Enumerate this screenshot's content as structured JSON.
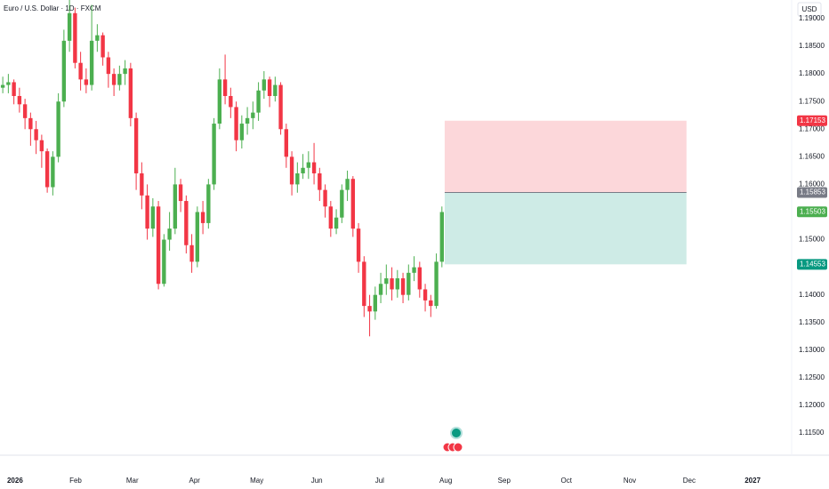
{
  "chart_data": {
    "type": "candlestick",
    "title": "Euro / U.S. Dollar · 1D · FXCM",
    "currency": "USD",
    "up_color": "#4caf50",
    "down_color": "#f23645",
    "candles": [
      [
        1.1775,
        1.1795,
        1.1765,
        1.178
      ],
      [
        1.178,
        1.18,
        1.1765,
        1.1785
      ],
      [
        1.1785,
        1.179,
        1.1745,
        1.176
      ],
      [
        1.176,
        1.1775,
        1.173,
        1.1745
      ],
      [
        1.1745,
        1.1755,
        1.17,
        1.172
      ],
      [
        1.172,
        1.173,
        1.167,
        1.17
      ],
      [
        1.17,
        1.1715,
        1.1655,
        1.168
      ],
      [
        1.168,
        1.169,
        1.163,
        1.166
      ],
      [
        1.166,
        1.1665,
        1.1585,
        1.1595
      ],
      [
        1.1595,
        1.166,
        1.158,
        1.165
      ],
      [
        1.165,
        1.1765,
        1.164,
        1.175
      ],
      [
        1.175,
        1.188,
        1.174,
        1.186
      ],
      [
        1.186,
        1.1935,
        1.184,
        1.191
      ],
      [
        1.191,
        1.192,
        1.181,
        1.182
      ],
      [
        1.182,
        1.184,
        1.177,
        1.179
      ],
      [
        1.179,
        1.181,
        1.1765,
        1.178
      ],
      [
        1.178,
        1.1925,
        1.177,
        1.186
      ],
      [
        1.186,
        1.189,
        1.184,
        1.187
      ],
      [
        1.187,
        1.1875,
        1.1815,
        1.183
      ],
      [
        1.183,
        1.184,
        1.1775,
        1.18
      ],
      [
        1.18,
        1.181,
        1.176,
        1.178
      ],
      [
        1.178,
        1.1815,
        1.177,
        1.18
      ],
      [
        1.18,
        1.1825,
        1.178,
        1.181
      ],
      [
        1.181,
        1.182,
        1.1705,
        1.172
      ],
      [
        1.172,
        1.173,
        1.159,
        1.162
      ],
      [
        1.162,
        1.164,
        1.1555,
        1.158
      ],
      [
        1.158,
        1.16,
        1.15,
        1.152
      ],
      [
        1.152,
        1.1575,
        1.1505,
        1.156
      ],
      [
        1.156,
        1.157,
        1.141,
        1.142
      ],
      [
        1.142,
        1.151,
        1.1415,
        1.15
      ],
      [
        1.15,
        1.155,
        1.148,
        1.152
      ],
      [
        1.152,
        1.163,
        1.151,
        1.16
      ],
      [
        1.16,
        1.161,
        1.155,
        1.157
      ],
      [
        1.157,
        1.158,
        1.1475,
        1.149
      ],
      [
        1.149,
        1.151,
        1.144,
        1.146
      ],
      [
        1.146,
        1.156,
        1.145,
        1.155
      ],
      [
        1.155,
        1.157,
        1.151,
        1.153
      ],
      [
        1.153,
        1.161,
        1.152,
        1.16
      ],
      [
        1.16,
        1.172,
        1.159,
        1.171
      ],
      [
        1.171,
        1.181,
        1.17,
        1.179
      ],
      [
        1.179,
        1.1835,
        1.1745,
        1.176
      ],
      [
        1.176,
        1.1775,
        1.172,
        1.174
      ],
      [
        1.174,
        1.175,
        1.166,
        1.168
      ],
      [
        1.168,
        1.1725,
        1.1665,
        1.171
      ],
      [
        1.171,
        1.174,
        1.169,
        1.172
      ],
      [
        1.172,
        1.175,
        1.17,
        1.173
      ],
      [
        1.173,
        1.1785,
        1.1715,
        1.177
      ],
      [
        1.177,
        1.1805,
        1.1755,
        1.179
      ],
      [
        1.179,
        1.1795,
        1.174,
        1.176
      ],
      [
        1.176,
        1.1795,
        1.175,
        1.178
      ],
      [
        1.178,
        1.1785,
        1.169,
        1.17
      ],
      [
        1.17,
        1.171,
        1.163,
        1.165
      ],
      [
        1.165,
        1.166,
        1.158,
        1.16
      ],
      [
        1.16,
        1.164,
        1.1585,
        1.162
      ],
      [
        1.162,
        1.1655,
        1.161,
        1.163
      ],
      [
        1.163,
        1.166,
        1.161,
        1.164
      ],
      [
        1.164,
        1.1675,
        1.16,
        1.162
      ],
      [
        1.162,
        1.163,
        1.157,
        1.159
      ],
      [
        1.159,
        1.16,
        1.154,
        1.156
      ],
      [
        1.156,
        1.157,
        1.1505,
        1.152
      ],
      [
        1.152,
        1.1555,
        1.151,
        1.154
      ],
      [
        1.154,
        1.16,
        1.153,
        1.159
      ],
      [
        1.159,
        1.1625,
        1.157,
        1.161
      ],
      [
        1.161,
        1.1615,
        1.1505,
        1.152
      ],
      [
        1.152,
        1.153,
        1.144,
        1.146
      ],
      [
        1.146,
        1.147,
        1.136,
        1.138
      ],
      [
        1.138,
        1.14,
        1.1325,
        1.137
      ],
      [
        1.137,
        1.1415,
        1.1355,
        1.14
      ],
      [
        1.14,
        1.144,
        1.1385,
        1.142
      ],
      [
        1.142,
        1.1455,
        1.14,
        1.143
      ],
      [
        1.143,
        1.145,
        1.139,
        1.141
      ],
      [
        1.141,
        1.1445,
        1.1395,
        1.143
      ],
      [
        1.143,
        1.144,
        1.1385,
        1.14
      ],
      [
        1.14,
        1.1455,
        1.139,
        1.144
      ],
      [
        1.144,
        1.147,
        1.1425,
        1.145
      ],
      [
        1.145,
        1.146,
        1.1395,
        1.141
      ],
      [
        1.141,
        1.142,
        1.137,
        1.139
      ],
      [
        1.139,
        1.14,
        1.136,
        1.138
      ],
      [
        1.138,
        1.1475,
        1.1375,
        1.146
      ],
      [
        1.146,
        1.156,
        1.145,
        1.155
      ]
    ],
    "xlim": [
      -0.5,
      141.6
    ],
    "xticks": [
      {
        "value": 2.2,
        "label": "2026"
      },
      {
        "value": 13.1,
        "label": "Feb"
      },
      {
        "value": 23.3,
        "label": "Mar"
      },
      {
        "value": 34.5,
        "label": "Apr"
      },
      {
        "value": 45.7,
        "label": "May"
      },
      {
        "value": 56.5,
        "label": "Jun"
      },
      {
        "value": 67.8,
        "label": "Jul"
      },
      {
        "value": 79.7,
        "label": "Aug"
      },
      {
        "value": 90.2,
        "label": "Sep"
      },
      {
        "value": 101.4,
        "label": "Oct"
      },
      {
        "value": 112.8,
        "label": "Nov"
      },
      {
        "value": 123.5,
        "label": "Dec"
      },
      {
        "value": 134.9,
        "label": "2027"
      }
    ],
    "ylim": [
      1.11098,
      1.19338
    ],
    "yticks": [
      {
        "value": 1.19,
        "label": "1.19000"
      },
      {
        "value": 1.185,
        "label": "1.18500"
      },
      {
        "value": 1.18,
        "label": "1.18000"
      },
      {
        "value": 1.175,
        "label": "1.17500"
      },
      {
        "value": 1.17,
        "label": "1.17000"
      },
      {
        "value": 1.165,
        "label": "1.16500"
      },
      {
        "value": 1.16,
        "label": "1.16000"
      },
      {
        "value": 1.155,
        "label": "1.15500"
      },
      {
        "value": 1.15,
        "label": "1.15000"
      },
      {
        "value": 1.145,
        "label": "1.14500"
      },
      {
        "value": 1.14,
        "label": "1.14000"
      },
      {
        "value": 1.135,
        "label": "1.13500"
      },
      {
        "value": 1.13,
        "label": "1.13000"
      },
      {
        "value": 1.125,
        "label": "1.12500"
      },
      {
        "value": 1.12,
        "label": "1.12000"
      },
      {
        "value": 1.115,
        "label": "1.11500"
      }
    ],
    "grid": false,
    "position": {
      "x_range": [
        79.5,
        123
      ],
      "stop": 1.17153,
      "entry": 1.15853,
      "target": 1.14553,
      "stop_color": "#f23645",
      "entry_color": "#787b86",
      "target_color": "#089981"
    },
    "last_price": 1.15503
  }
}
